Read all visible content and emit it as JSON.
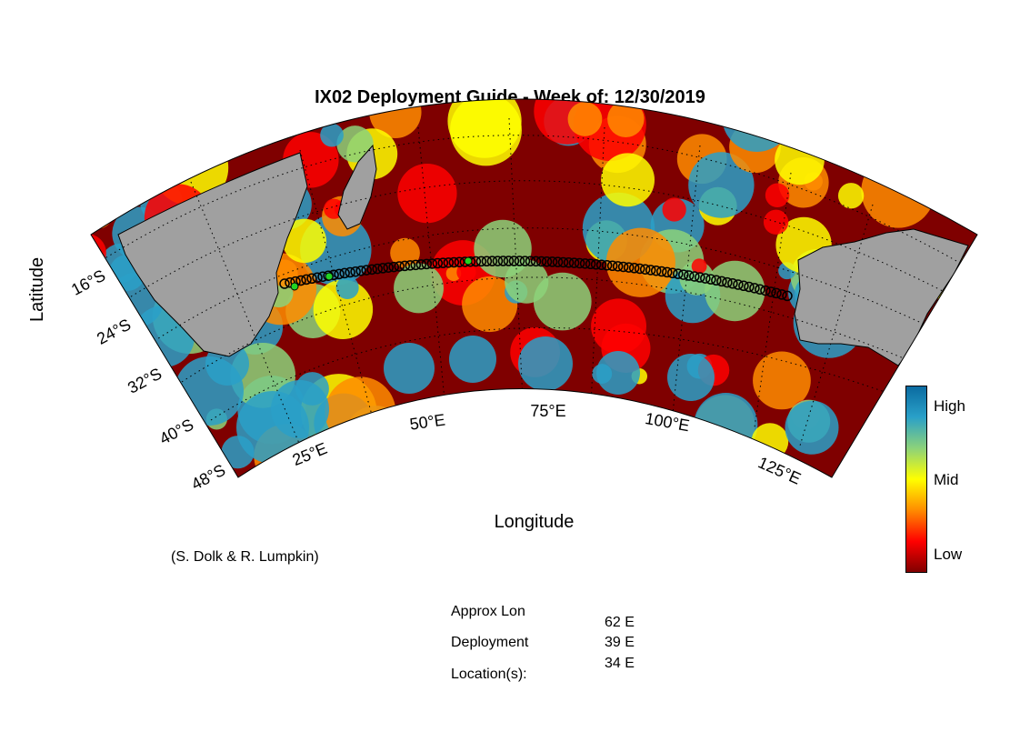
{
  "title": "IX02 Deployment Guide - Week of: 12/30/2019",
  "axes": {
    "ylabel": "Latitude",
    "xlabel": "Longitude",
    "lat_ticks": [
      "16°S",
      "24°S",
      "32°S",
      "40°S",
      "48°S"
    ],
    "lon_ticks": [
      "25°E",
      "50°E",
      "75°E",
      "100°E",
      "125°E"
    ]
  },
  "colorbar": {
    "labels": [
      "High",
      "Mid",
      "Low"
    ],
    "colors": [
      "#7f0000",
      "#ff0000",
      "#ff8c00",
      "#ffff00",
      "#8cd27a",
      "#2aa0c8",
      "#0a6aa0"
    ]
  },
  "credit": "(S. Dolk & R. Lumpkin)",
  "deployment": {
    "label_lines": [
      "Approx Lon",
      "Deployment",
      "Location(s):"
    ],
    "locations": [
      "62 E",
      "39 E",
      "34 E"
    ]
  },
  "land_color": "#a0a0a0",
  "track_marker_color": "#000000",
  "deploy_marker_color": "#22d322"
}
